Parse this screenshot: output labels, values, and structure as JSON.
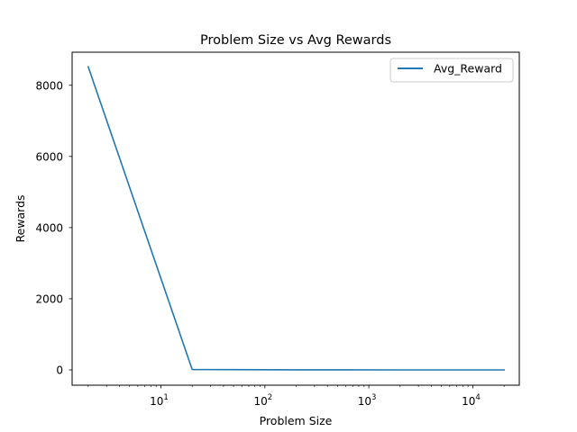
{
  "chart_data": {
    "type": "line",
    "title": "Problem Size vs Avg Rewards",
    "xlabel": "Problem Size",
    "ylabel": "Rewards",
    "xscale": "log",
    "yscale": "linear",
    "xlim": [
      1.4,
      28000
    ],
    "ylim": [
      -430,
      8930
    ],
    "xticks": [
      {
        "value": 10,
        "base": "10",
        "exp": "1"
      },
      {
        "value": 100,
        "base": "10",
        "exp": "2"
      },
      {
        "value": 1000,
        "base": "10",
        "exp": "3"
      },
      {
        "value": 10000,
        "base": "10",
        "exp": "4"
      }
    ],
    "yticks": [
      {
        "value": 0,
        "label": "0"
      },
      {
        "value": 2000,
        "label": "2000"
      },
      {
        "value": 4000,
        "label": "4000"
      },
      {
        "value": 6000,
        "label": "6000"
      },
      {
        "value": 8000,
        "label": "8000"
      }
    ],
    "grid": false,
    "legend_position": "top-right",
    "series": [
      {
        "name": "Avg_Reward",
        "color": "#1f77b4",
        "x": [
          2,
          20,
          200,
          2000,
          20000
        ],
        "y": [
          8520,
          10,
          2,
          0,
          0
        ]
      }
    ]
  }
}
